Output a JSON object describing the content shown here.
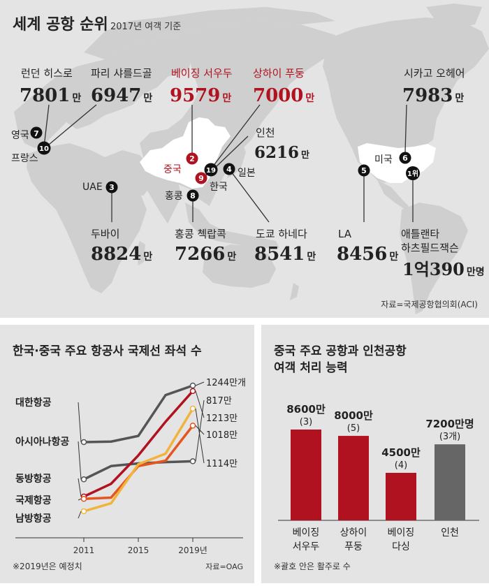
{
  "map": {
    "title": "세계 공항 순위",
    "subtitle": "2017년 여객 기준",
    "source": "자료=국제공항협의회(ACI)",
    "airports": [
      {
        "rank": "1위",
        "name": "애틀랜타 하츠필드잭슨",
        "line1": "애틀랜타",
        "line2": "하츠필드잭슨",
        "num": "1억390",
        "unit": "만명",
        "country": ""
      },
      {
        "rank": "2",
        "name": "베이징 서우두",
        "num": "9579",
        "unit": "만",
        "country": "중국",
        "highlight": true
      },
      {
        "rank": "3",
        "name": "두바이",
        "num": "8824",
        "unit": "만",
        "country": "UAE"
      },
      {
        "rank": "4",
        "name": "도쿄 하네다",
        "num": "8541",
        "unit": "만",
        "country": "일본"
      },
      {
        "rank": "5",
        "name": "LA",
        "num": "8456",
        "unit": "만",
        "country": ""
      },
      {
        "rank": "6",
        "name": "시카고 오헤어",
        "num": "7983",
        "unit": "만",
        "country": "미국"
      },
      {
        "rank": "7",
        "name": "런던 히스로",
        "num": "7801",
        "unit": "만",
        "country": "영국"
      },
      {
        "rank": "8",
        "name": "홍콩 첵랍콕",
        "num": "7266",
        "unit": "만",
        "country": "홍콩"
      },
      {
        "rank": "9",
        "name": "상하이 푸둥",
        "num": "7000",
        "unit": "만",
        "country": "",
        "highlight": true
      },
      {
        "rank": "10",
        "name": "파리 샤를드골",
        "num": "6947",
        "unit": "만",
        "country": "프랑스"
      },
      {
        "rank": "19",
        "name": "인천",
        "num": "6216",
        "unit": "만",
        "country": "한국"
      }
    ],
    "colors": {
      "land": "#cfcfcf",
      "sea": "#e4e4e4",
      "highlight": "#b0121f",
      "china": "#ffffff"
    }
  },
  "chart_data": [
    {
      "type": "line",
      "title": "한국·중국 주요 항공사 국제선 좌석 수",
      "x": [
        2011,
        2013,
        2015,
        2017,
        2019
      ],
      "xticks": [
        "2011",
        "2015",
        "2019년"
      ],
      "series": [
        {
          "name": "대한항공",
          "values": [
            925,
            928,
            960,
            1190,
            1244
          ],
          "end_label": "1244만개",
          "color": "#555555"
        },
        {
          "name": "아시아나항공",
          "values": [
            715,
            790,
            805,
            812,
            817
          ],
          "end_label": "817만",
          "color": "#555555"
        },
        {
          "name": "동방항공",
          "values": [
            618,
            690,
            850,
            1040,
            1213
          ],
          "end_label": "1213만",
          "color": "#b0121f"
        },
        {
          "name": "국제항공",
          "values": [
            605,
            612,
            790,
            820,
            1018
          ],
          "end_label": "1018만",
          "color": "#e4551f"
        },
        {
          "name": "남방항공",
          "values": [
            535,
            580,
            800,
            860,
            1114
          ],
          "end_label": "1114만",
          "color": "#f2b33d"
        }
      ],
      "note": "※2019년은 예정치",
      "source": "자료=OAG"
    },
    {
      "type": "bar",
      "title": "중국 주요 공항과 인천공항 여객 처리 능력",
      "categories": [
        "베이징 서우두",
        "상하이 푸둥",
        "베이징 다싱",
        "인천"
      ],
      "category_lines": [
        [
          "베이징",
          "서우두"
        ],
        [
          "상하이",
          "푸둥"
        ],
        [
          "베이징",
          "다싱"
        ],
        [
          "인천",
          ""
        ]
      ],
      "values": [
        8600,
        8000,
        4500,
        7200
      ],
      "value_labels": [
        "8600만",
        "8000만",
        "4500만",
        "7200만명"
      ],
      "sub_labels": [
        "(3)",
        "(5)",
        "(4)",
        "(3개)"
      ],
      "colors": [
        "#b0121f",
        "#b0121f",
        "#b0121f",
        "#666666"
      ],
      "note": "※괄호 안은 활주로 수"
    }
  ]
}
